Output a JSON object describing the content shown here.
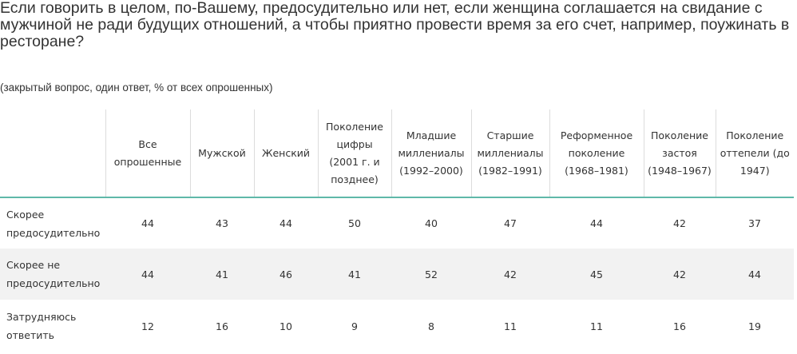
{
  "title": "Если говорить в целом, по-Вашему, предосудительно или нет, если женщина соглашается на свидание с мужчиной не ради будущих отношений, а чтобы приятно провести время за его счет, например, поужинать в ресторане?",
  "subtitle": "(закрытый вопрос, один ответ, % от всех опрошенных)",
  "table": {
    "columns": [
      "Все опрошенные",
      "Мужской",
      "Женский",
      "Поколение цифры (2001 г. и позднее)",
      "Младшие миллениалы (1992–2000)",
      "Старшие миллениалы (1982–1991)",
      "Реформенное поколение (1968–1981)",
      "Поколение застоя (1948–1967)",
      "Поколение оттепели (до 1947)"
    ],
    "rows": [
      {
        "label": "Скорее предосудительно",
        "values": [
          "44",
          "43",
          "44",
          "50",
          "40",
          "47",
          "44",
          "42",
          "37"
        ]
      },
      {
        "label": "Скорее не предосудительно",
        "values": [
          "44",
          "41",
          "46",
          "41",
          "52",
          "42",
          "45",
          "42",
          "44"
        ]
      },
      {
        "label": "Затрудняюсь ответить",
        "values": [
          "12",
          "16",
          "10",
          "9",
          "8",
          "11",
          "11",
          "16",
          "19"
        ]
      }
    ]
  }
}
